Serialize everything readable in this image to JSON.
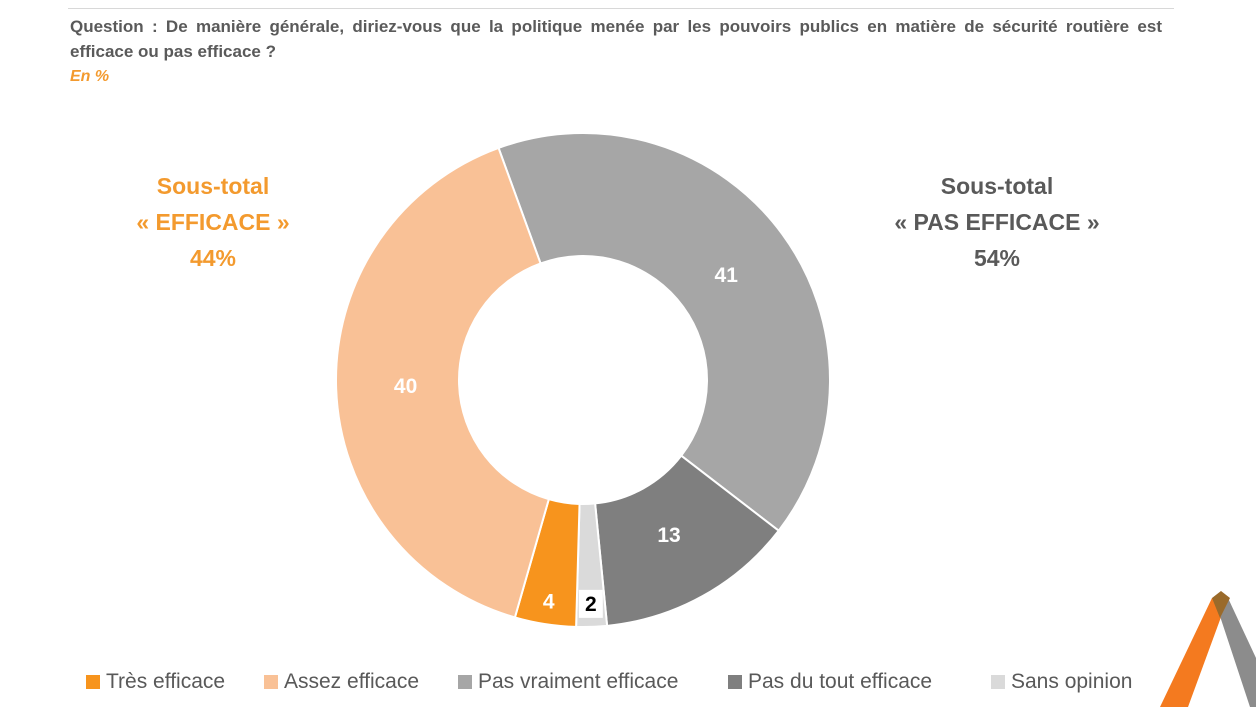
{
  "question": "Question : De manière générale, diriez-vous que la politique menée par les pouvoirs publics en matière de sécurité routière est efficace ou pas efficace ?",
  "unit": "En %",
  "subtotals": {
    "efficace": {
      "line1": "Sous-total",
      "line2": "« EFFICACE »",
      "line3": "44%",
      "color": "#f39a2e"
    },
    "pas_efficace": {
      "line1": "Sous-total",
      "line2": "« PAS EFFICACE »",
      "line3": "54%",
      "color": "#595959"
    }
  },
  "chart_data": {
    "type": "pie",
    "donut": true,
    "categories": [
      "Très efficace",
      "Assez efficace",
      "Pas vraiment efficace",
      "Pas du tout efficace",
      "Sans opinion"
    ],
    "values": [
      4,
      40,
      41,
      13,
      2
    ],
    "colors": [
      "#f7941d",
      "#f9c196",
      "#a6a6a6",
      "#7f7f7f",
      "#dadada"
    ],
    "label_colors": [
      "#ffffff",
      "#ffffff",
      "#ffffff",
      "#ffffff",
      "#000000"
    ],
    "legend": "bottom"
  },
  "logo": {
    "name": "triangle-logo-icon",
    "colors": [
      "#f47a1f",
      "#8c8c8c"
    ]
  }
}
